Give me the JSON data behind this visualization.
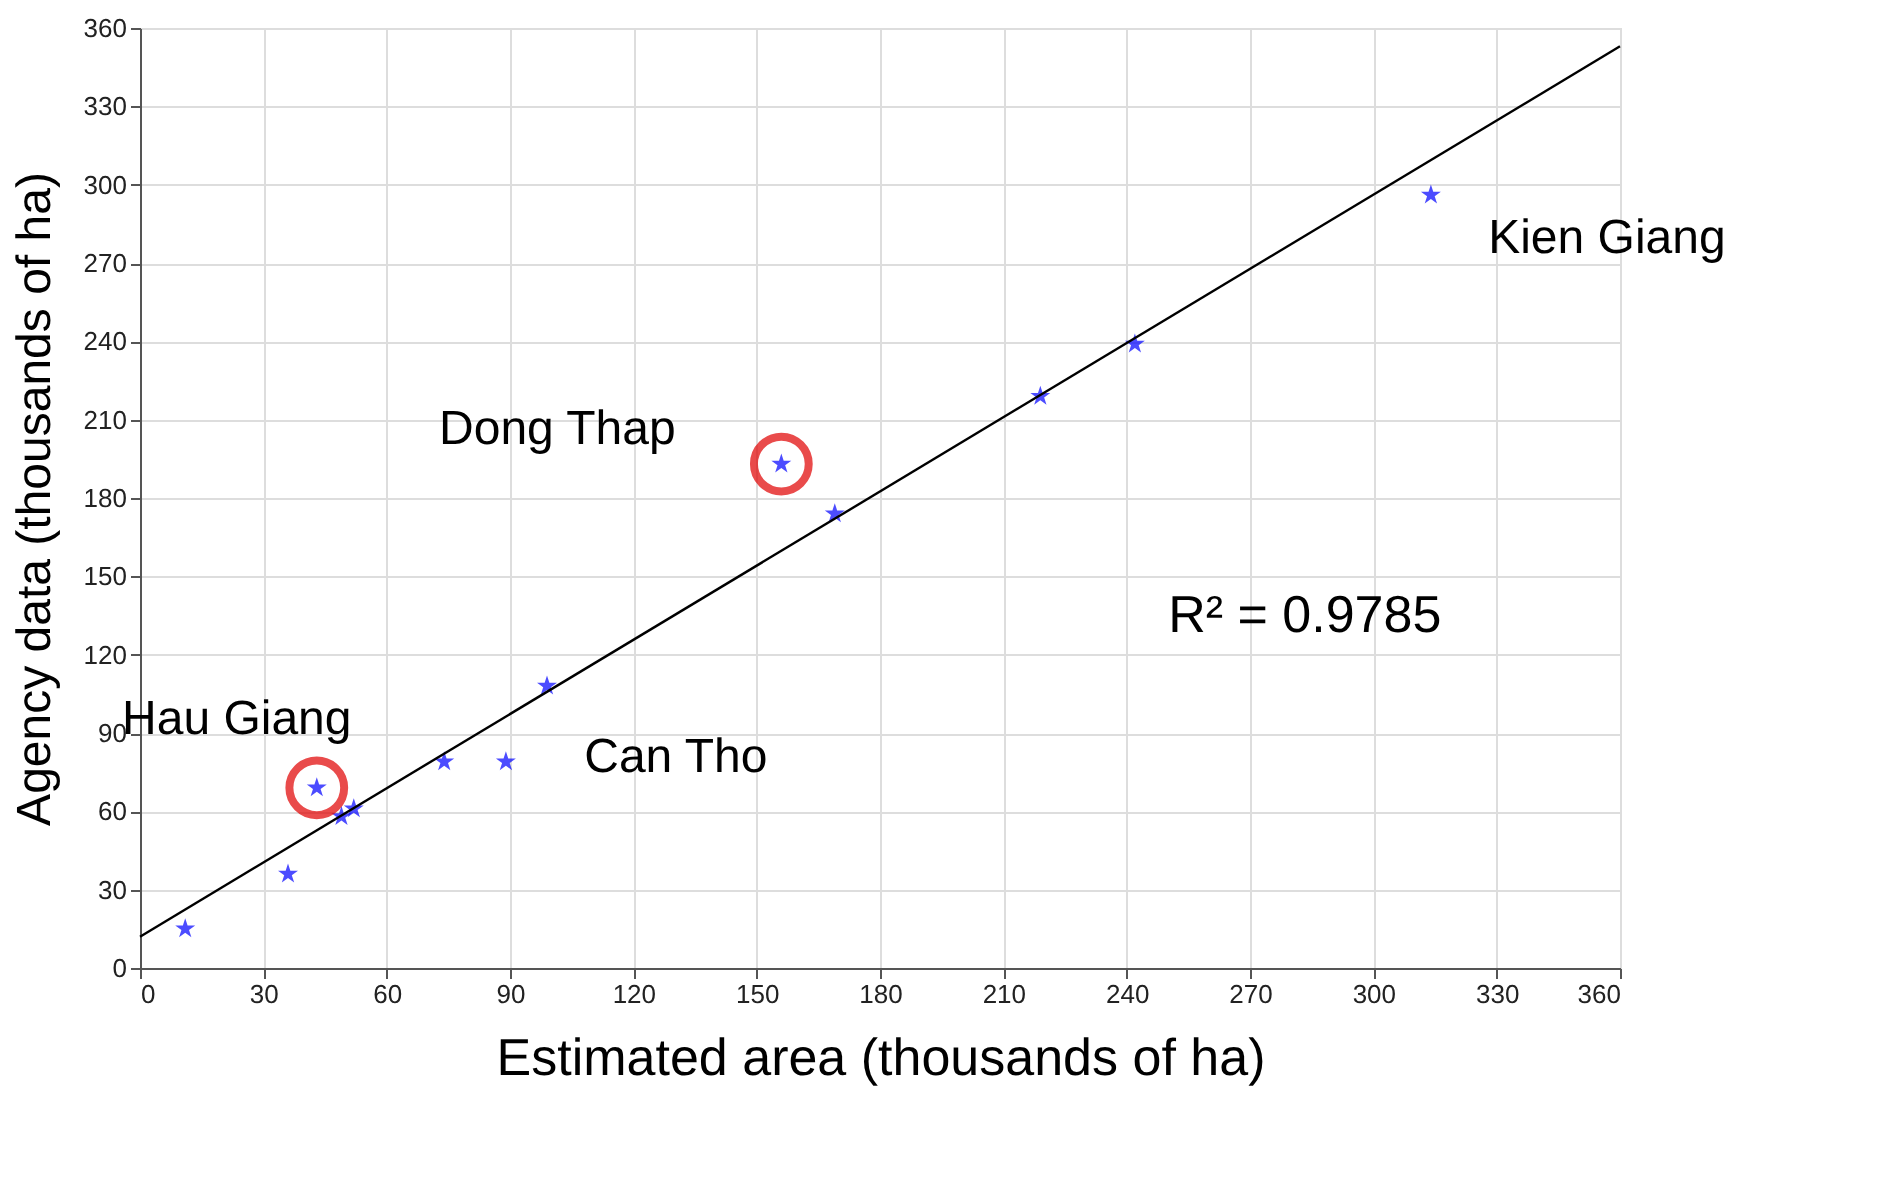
{
  "chart_data": {
    "type": "scatter",
    "xlabel": "Estimated area (thousands of ha)",
    "ylabel": "Agency data (thousands of ha)",
    "xlim": [
      0,
      360
    ],
    "ylim": [
      0,
      360
    ],
    "xticks": [
      0,
      30,
      60,
      90,
      120,
      150,
      180,
      210,
      240,
      270,
      300,
      330,
      360
    ],
    "yticks": [
      0,
      30,
      60,
      90,
      120,
      150,
      180,
      210,
      240,
      270,
      300,
      330,
      360
    ],
    "grid": true,
    "series": [
      {
        "type": "scatter",
        "marker": "star",
        "color": "#0000ff",
        "x": [
          11,
          36,
          43,
          49,
          52,
          74,
          89,
          99,
          156,
          169,
          219,
          242,
          314
        ],
        "values": [
          15,
          36,
          69,
          58,
          61,
          79,
          79,
          108,
          193,
          174,
          219,
          239,
          296
        ]
      },
      {
        "type": "line",
        "line_style": "solid",
        "color": "#000000",
        "x": [
          0,
          360
        ],
        "values": [
          12,
          353
        ]
      },
      {
        "type": "scatter",
        "marker": "circle",
        "color": "#e00000",
        "x": [
          43,
          156
        ],
        "values": [
          69,
          193
        ]
      }
    ],
    "annotations": [
      {
        "text": "Kien Giang",
        "x": 314,
        "y": 296
      },
      {
        "text": "Dong Thap",
        "x": 156,
        "y": 193
      },
      {
        "text": "Hau Giang",
        "x": 43,
        "y": 69
      },
      {
        "text": "Can Tho",
        "x": 89,
        "y": 79
      },
      "R² = 0.9785"
    ]
  }
}
